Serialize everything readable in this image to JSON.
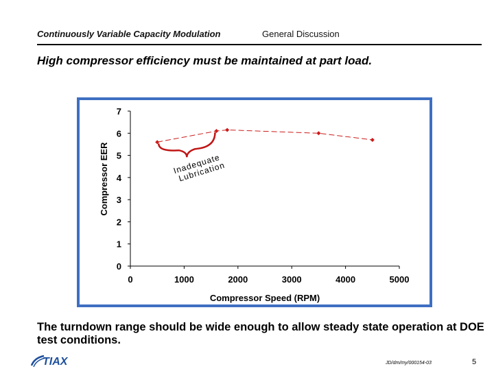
{
  "header": {
    "left_title": "Continuously Variable Capacity Modulation",
    "right_title": "General Discussion"
  },
  "slide_title": "High compressor efficiency must be maintained at part load.",
  "bottom_text": "The turndown range should be wide enough to allow steady state operation at DOE test conditions.",
  "footer": {
    "doc_id": "JD/dm/my/000154-03",
    "page_number": "5",
    "logo_text": "TIAX"
  },
  "colors": {
    "frame": "#3e6fc2",
    "series": "#cc1a1a",
    "brace": "#c01515",
    "logo": "#1d4f9c"
  },
  "chart_data": {
    "type": "scatter",
    "title": "",
    "xlabel": "Compressor Speed (RPM)",
    "ylabel": "Compressor EER",
    "xlim": [
      0,
      5000
    ],
    "ylim": [
      0,
      7
    ],
    "xticks": [
      "0",
      "1000",
      "2000",
      "3000",
      "4000",
      "5000"
    ],
    "yticks": [
      "0",
      "1",
      "2",
      "3",
      "4",
      "5",
      "6",
      "7"
    ],
    "grid": false,
    "legend": "none",
    "series": [
      {
        "line_style": "dashed",
        "marker": "diamond",
        "x": [
          500,
          1600,
          1800,
          3500,
          4500
        ],
        "y": [
          5.6,
          6.1,
          6.15,
          6.0,
          5.7
        ]
      }
    ],
    "annotations": [
      {
        "text_line1": "Inadequate",
        "text_line2": "Lubrication",
        "brace_from_x": 500,
        "brace_to_x": 1600
      }
    ]
  }
}
